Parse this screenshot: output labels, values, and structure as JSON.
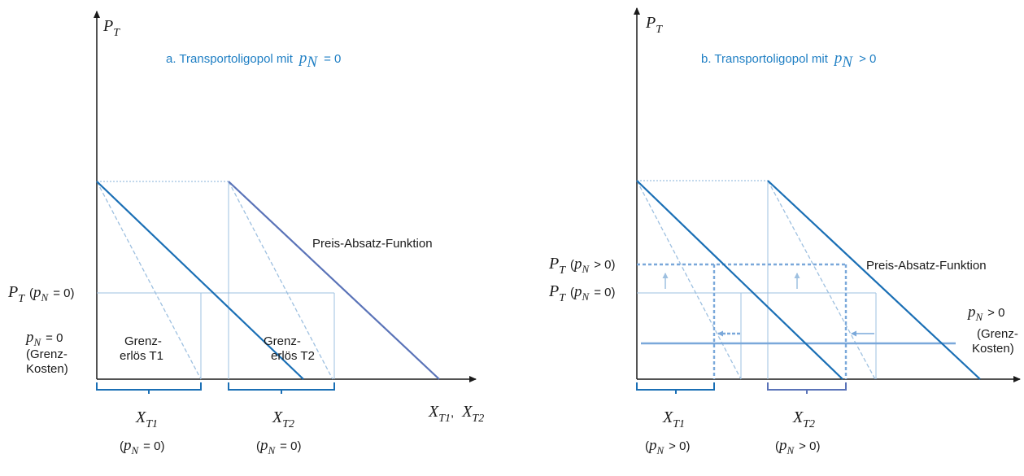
{
  "colors": {
    "axis": "#1a1a1a",
    "dark_blue": "#1a6fb5",
    "slate_blue": "#5a73b8",
    "light_blue": "#9ec0e0",
    "mid_blue": "#7aa8da",
    "title_blue": "#1f7fc4"
  },
  "panel_a": {
    "y_axis_P": "P",
    "y_axis_T": "T",
    "title_prefix": "a. Transportoligopol mit",
    "title_p": "p",
    "title_N": "N",
    "title_suffix": "= 0",
    "label_preis_absatz": "Preis-Absatz-Funktion",
    "label_price_P": "P",
    "label_price_T": "T",
    "label_price_open": "(",
    "label_price_p": "p",
    "label_price_N": "N",
    "label_price_close": "= 0)",
    "grenz1_line1": "Grenz-",
    "grenz1_line2": "erlös T1",
    "grenz2_line1": "Grenz-",
    "grenz2_line2": "erlös T2",
    "cost_p": "p",
    "cost_N": "N",
    "cost_eq": "= 0",
    "cost_line2": "(Grenz-",
    "cost_line3": "Kosten)",
    "x_axis_X1": "X",
    "x_axis_T1": "T1",
    "x_axis_comma": ",",
    "x_axis_X2": "X",
    "x_axis_T2": "T2",
    "xt1_X": "X",
    "xt1_sub": "T1",
    "xt1_cond_open": "(",
    "xt1_cond_p": "p",
    "xt1_cond_N": "N",
    "xt1_cond_close": "= 0)",
    "xt2_X": "X",
    "xt2_sub": "T2",
    "xt2_cond_open": "(",
    "xt2_cond_p": "p",
    "xt2_cond_N": "N",
    "xt2_cond_close": "= 0)"
  },
  "panel_b": {
    "y_axis_P": "P",
    "y_axis_T": "T",
    "title_prefix": "b. Transportoligopol mit",
    "title_p": "p",
    "title_N": "N",
    "title_suffix": "> 0",
    "label_preis_absatz": "Preis-Absatz-Funktion",
    "label_high_P": "P",
    "label_high_T": "T",
    "label_high_open": "(",
    "label_high_p": "p",
    "label_high_N": "N",
    "label_high_close": "> 0)",
    "label_low_P": "P",
    "label_low_T": "T",
    "label_low_open": "(",
    "label_low_p": "p",
    "label_low_N": "N",
    "label_low_close": "= 0)",
    "cost_p": "p",
    "cost_N": "N",
    "cost_eq": "> 0",
    "cost_line2": "(Grenz-",
    "cost_line3": "Kosten)",
    "xt1_X": "X",
    "xt1_sub": "T1",
    "xt1_cond_open": "(",
    "xt1_cond_p": "p",
    "xt1_cond_N": "N",
    "xt1_cond_close": "> 0)",
    "xt2_X": "X",
    "xt2_sub": "T2",
    "xt2_cond_open": "(",
    "xt2_cond_p": "p",
    "xt2_cond_N": "N",
    "xt2_cond_close": "> 0)"
  }
}
